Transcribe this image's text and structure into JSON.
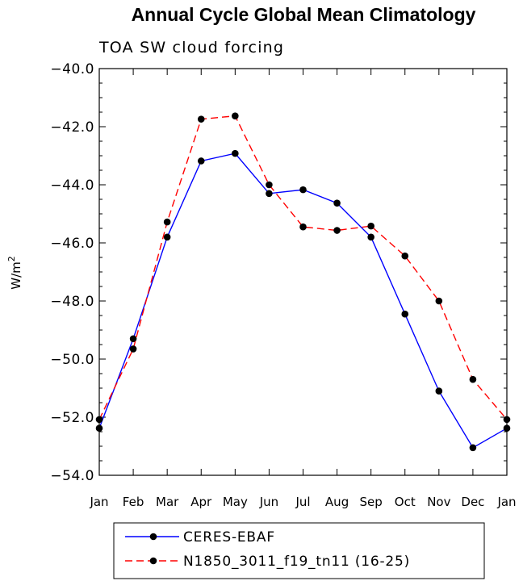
{
  "title": "Annual Cycle Global Mean Climatology",
  "subtitle": "TOA SW cloud forcing",
  "chart_data": {
    "type": "line",
    "title": "Annual Cycle Global Mean Climatology",
    "subtitle": "TOA SW cloud forcing",
    "xlabel": "",
    "ylabel": "W/m",
    "ylabel_superscript": "2",
    "categories": [
      "Jan",
      "Feb",
      "Mar",
      "Apr",
      "May",
      "Jun",
      "Jul",
      "Aug",
      "Sep",
      "Oct",
      "Nov",
      "Dec",
      "Jan"
    ],
    "ylim": [
      -54.0,
      -40.0
    ],
    "yticks": [
      -54.0,
      -52.0,
      -50.0,
      -48.0,
      -46.0,
      -44.0,
      -42.0,
      -40.0
    ],
    "ytick_labels": [
      "−54.0",
      "−52.0",
      "−50.0",
      "−48.0",
      "−46.0",
      "−44.0",
      "−42.0",
      "−40.0"
    ],
    "grid": false,
    "legend_position": "bottom",
    "series": [
      {
        "name": "CERES-EBAF",
        "color": "#0000ff",
        "dash": "solid",
        "values": [
          -52.38,
          -49.3,
          -45.8,
          -43.18,
          -42.92,
          -44.3,
          -44.17,
          -44.63,
          -45.8,
          -48.45,
          -51.1,
          -53.05,
          -52.38
        ]
      },
      {
        "name": "N1850_3011_f19_tn11 (16-25)",
        "color": "#ff0000",
        "dash": "dashed",
        "values": [
          -52.08,
          -49.65,
          -45.28,
          -41.74,
          -41.63,
          -44.0,
          -45.45,
          -45.57,
          -45.42,
          -46.45,
          -48.0,
          -50.7,
          -52.08
        ]
      }
    ]
  }
}
